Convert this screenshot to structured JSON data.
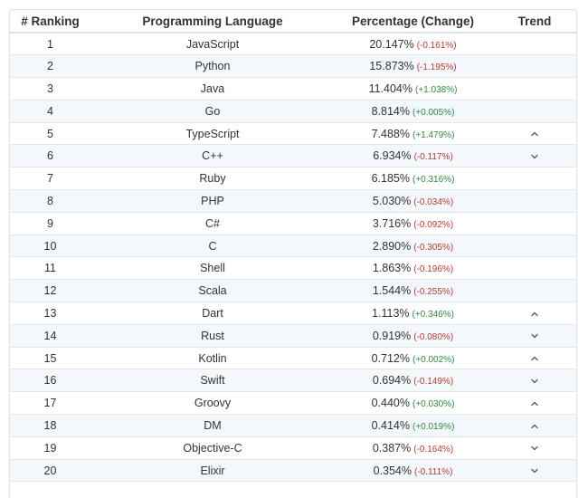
{
  "header": {
    "ranking": "# Ranking",
    "language": "Programming Language",
    "percentage": "Percentage (Change)",
    "trend": "Trend"
  },
  "rows": [
    {
      "rank": "1",
      "language": "JavaScript",
      "percentage": "20.147%",
      "change": "(-0.161%)",
      "dir": "neg",
      "trend": "none"
    },
    {
      "rank": "2",
      "language": "Python",
      "percentage": "15.873%",
      "change": "(-1.195%)",
      "dir": "neg",
      "trend": "none"
    },
    {
      "rank": "3",
      "language": "Java",
      "percentage": "11.404%",
      "change": "(+1.038%)",
      "dir": "pos",
      "trend": "none"
    },
    {
      "rank": "4",
      "language": "Go",
      "percentage": "8.814%",
      "change": "(+0.005%)",
      "dir": "pos",
      "trend": "none"
    },
    {
      "rank": "5",
      "language": "TypeScript",
      "percentage": "7.488%",
      "change": "(+1.479%)",
      "dir": "pos",
      "trend": "up"
    },
    {
      "rank": "6",
      "language": "C++",
      "percentage": "6.934%",
      "change": "(-0.117%)",
      "dir": "neg",
      "trend": "down"
    },
    {
      "rank": "7",
      "language": "Ruby",
      "percentage": "6.185%",
      "change": "(+0.316%)",
      "dir": "pos",
      "trend": "none"
    },
    {
      "rank": "8",
      "language": "PHP",
      "percentage": "5.030%",
      "change": "(-0.034%)",
      "dir": "neg",
      "trend": "none"
    },
    {
      "rank": "9",
      "language": "C#",
      "percentage": "3.716%",
      "change": "(-0.092%)",
      "dir": "neg",
      "trend": "none"
    },
    {
      "rank": "10",
      "language": "C",
      "percentage": "2.890%",
      "change": "(-0.305%)",
      "dir": "neg",
      "trend": "none"
    },
    {
      "rank": "11",
      "language": "Shell",
      "percentage": "1.863%",
      "change": "(-0.196%)",
      "dir": "neg",
      "trend": "none"
    },
    {
      "rank": "12",
      "language": "Scala",
      "percentage": "1.544%",
      "change": "(-0.255%)",
      "dir": "neg",
      "trend": "none"
    },
    {
      "rank": "13",
      "language": "Dart",
      "percentage": "1.113%",
      "change": "(+0.346%)",
      "dir": "pos",
      "trend": "up"
    },
    {
      "rank": "14",
      "language": "Rust",
      "percentage": "0.919%",
      "change": "(-0.080%)",
      "dir": "neg",
      "trend": "down"
    },
    {
      "rank": "15",
      "language": "Kotlin",
      "percentage": "0.712%",
      "change": "(+0.002%)",
      "dir": "pos",
      "trend": "up"
    },
    {
      "rank": "16",
      "language": "Swift",
      "percentage": "0.694%",
      "change": "(-0.149%)",
      "dir": "neg",
      "trend": "down"
    },
    {
      "rank": "17",
      "language": "Groovy",
      "percentage": "0.440%",
      "change": "(+0.030%)",
      "dir": "pos",
      "trend": "up"
    },
    {
      "rank": "18",
      "language": "DM",
      "percentage": "0.414%",
      "change": "(+0.019%)",
      "dir": "pos",
      "trend": "up"
    },
    {
      "rank": "19",
      "language": "Objective-C",
      "percentage": "0.387%",
      "change": "(-0.164%)",
      "dir": "neg",
      "trend": "down"
    },
    {
      "rank": "20",
      "language": "Elixir",
      "percentage": "0.354%",
      "change": "(-0.111%)",
      "dir": "neg",
      "trend": "down"
    }
  ],
  "colors": {
    "negative": "#c0392b",
    "positive": "#2e8b3c",
    "row_alt": "#f3f8fc",
    "trend_icon": "#555555"
  },
  "icons": {
    "up": "chevron-up-icon",
    "down": "chevron-down-icon"
  }
}
